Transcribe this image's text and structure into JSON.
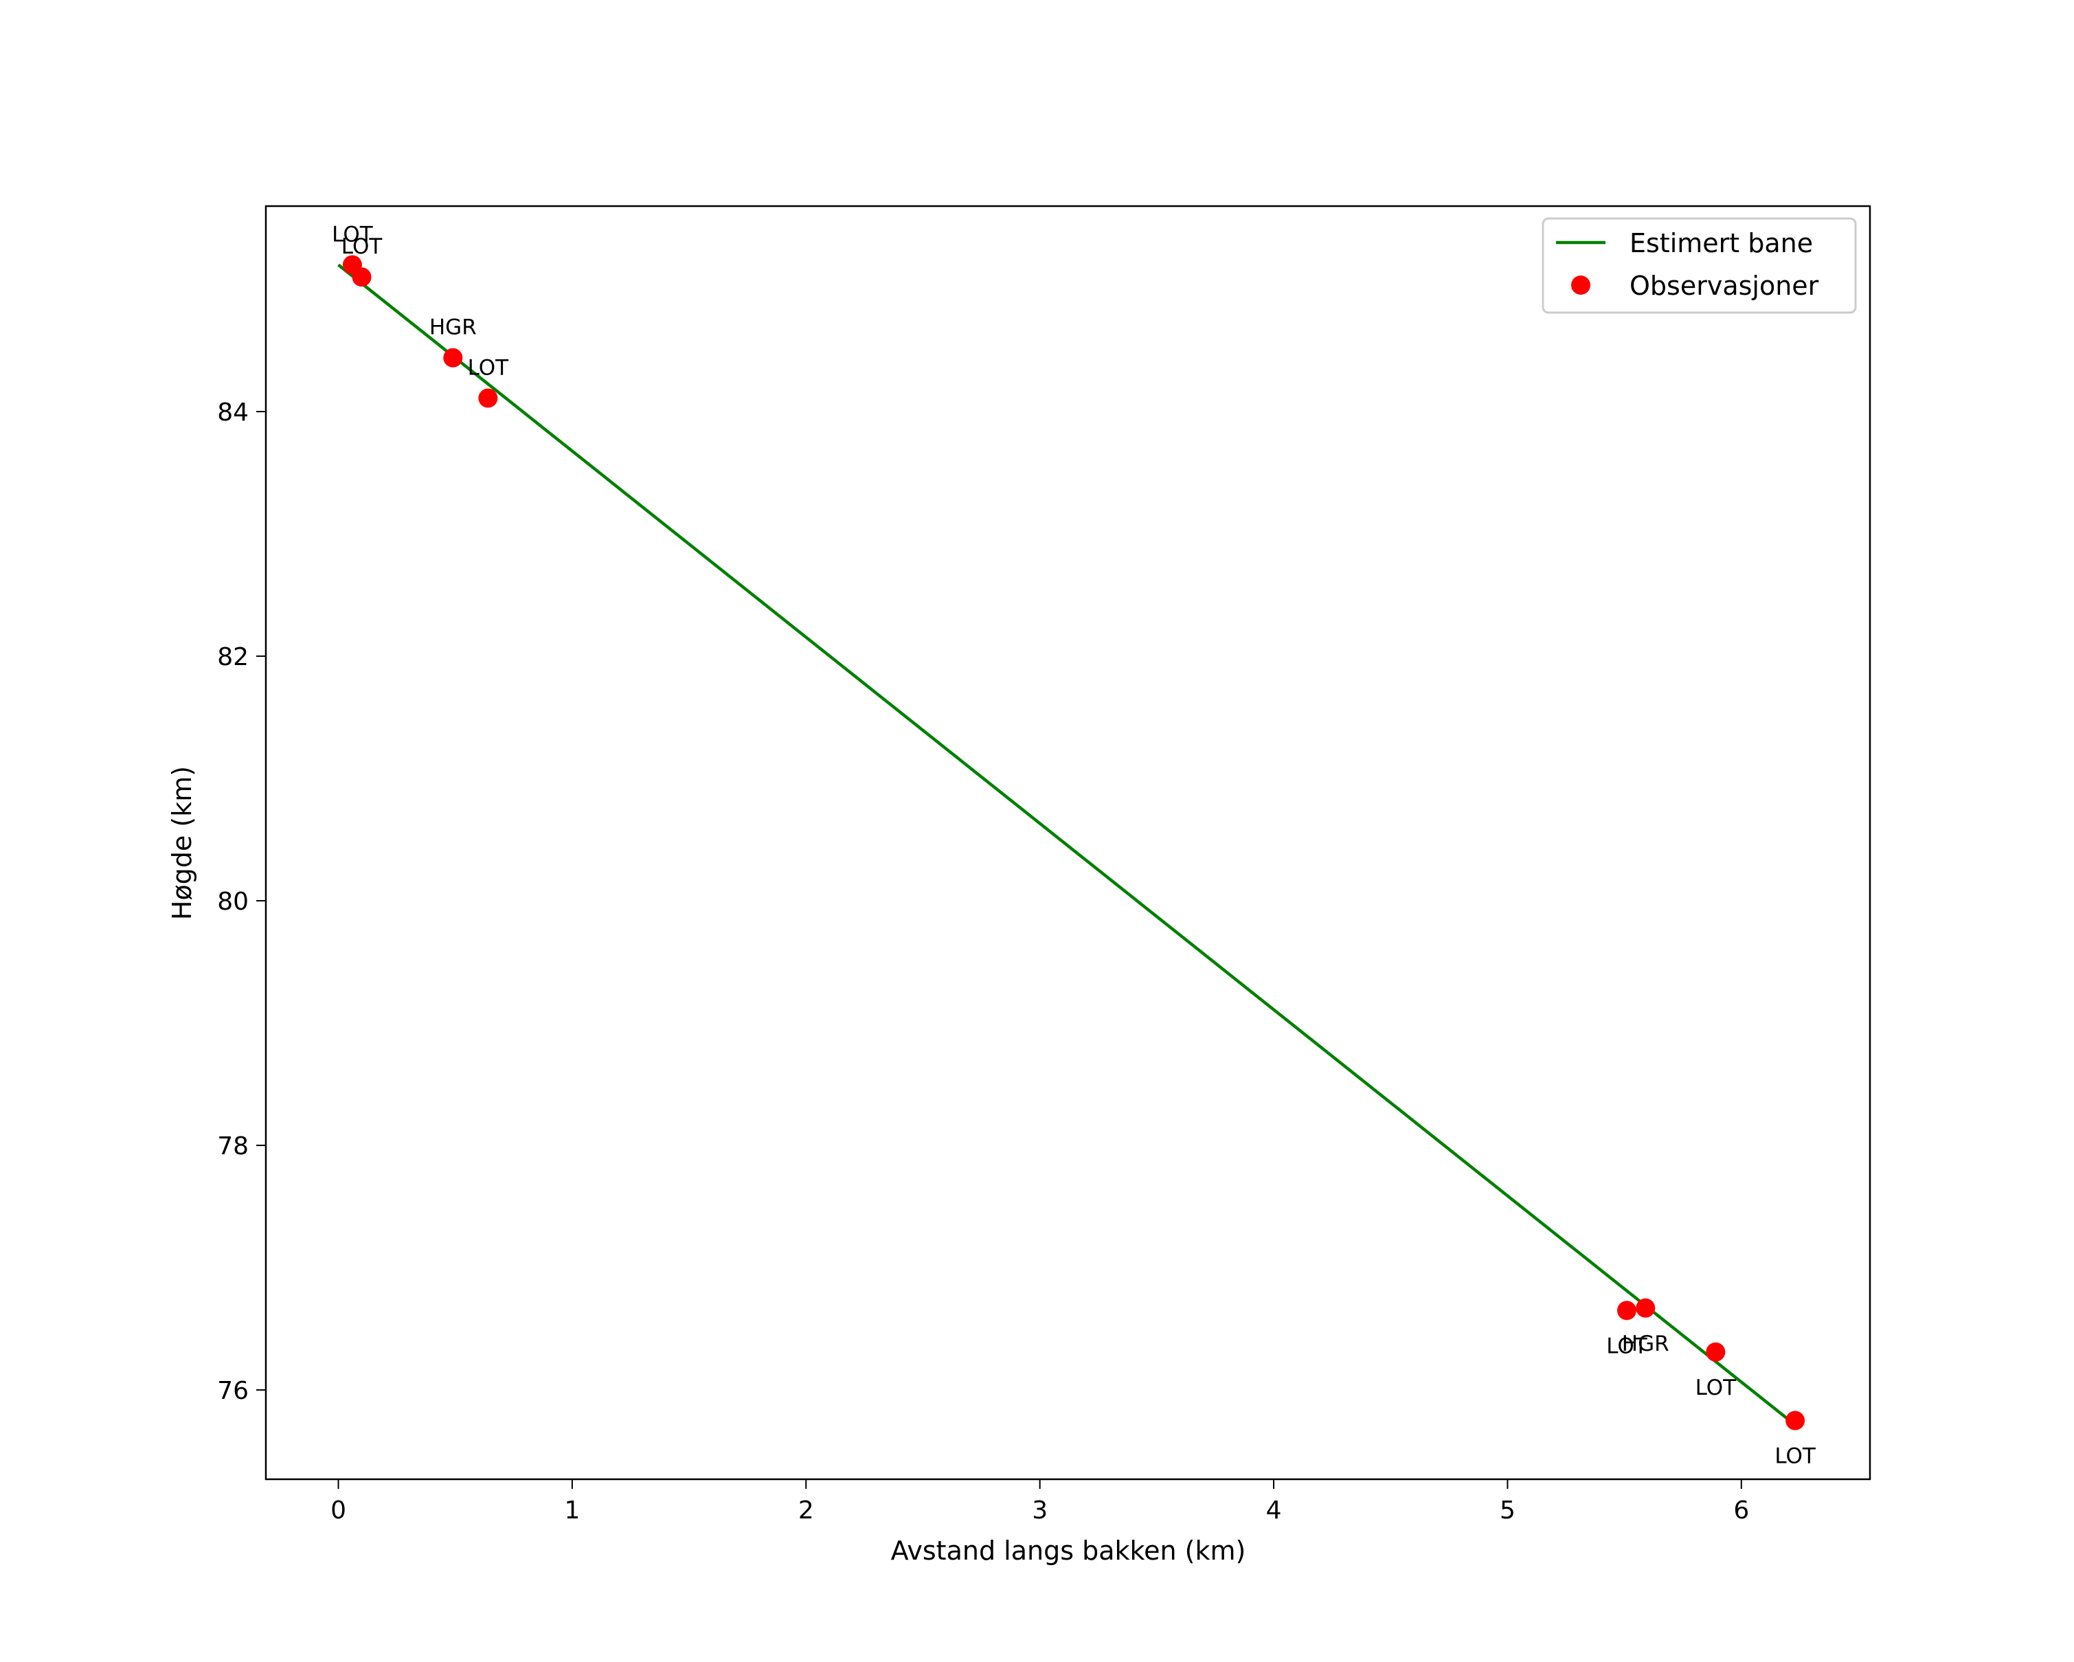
{
  "chart_data": {
    "type": "line+scatter",
    "title": "",
    "xlabel": "Avstand langs bakken (km)",
    "ylabel": "Høgde (km)",
    "xlim": [
      -0.31,
      6.55
    ],
    "ylim": [
      75.27,
      85.68
    ],
    "xticks": [
      0,
      1,
      2,
      3,
      4,
      5,
      6
    ],
    "yticks": [
      76,
      78,
      80,
      82,
      84
    ],
    "grid": false,
    "legend_position": "upper right",
    "series": [
      {
        "name": "Estimert bane",
        "kind": "line",
        "color": "#008000",
        "x": [
          0.0,
          6.22
        ],
        "y": [
          85.2,
          75.73
        ]
      },
      {
        "name": "Observasjoner",
        "kind": "scatter",
        "color": "#ff0000",
        "points": [
          {
            "x": 0.06,
            "y": 85.2,
            "label": "LOT",
            "label_pos": "above"
          },
          {
            "x": 0.1,
            "y": 85.1,
            "label": "LOT",
            "label_pos": "above"
          },
          {
            "x": 0.49,
            "y": 84.44,
            "label": "HGR",
            "label_pos": "above"
          },
          {
            "x": 0.64,
            "y": 84.11,
            "label": "LOT",
            "label_pos": "above"
          },
          {
            "x": 5.51,
            "y": 76.65,
            "label": "LOT",
            "label_pos": "below"
          },
          {
            "x": 5.59,
            "y": 76.67,
            "label": "HGR",
            "label_pos": "below"
          },
          {
            "x": 5.89,
            "y": 76.31,
            "label": "LOT",
            "label_pos": "below"
          },
          {
            "x": 6.23,
            "y": 75.75,
            "label": "LOT",
            "label_pos": "below"
          }
        ]
      }
    ]
  },
  "legend": {
    "items": [
      {
        "label": "Estimert bane",
        "symbol": "line-icon",
        "color": "#008000"
      },
      {
        "label": "Observasjoner",
        "symbol": "dot-icon",
        "color": "#ff0000"
      }
    ]
  },
  "axes": {
    "xlabel": "Avstand langs bakken (km)",
    "ylabel": "Høgde (km)"
  }
}
